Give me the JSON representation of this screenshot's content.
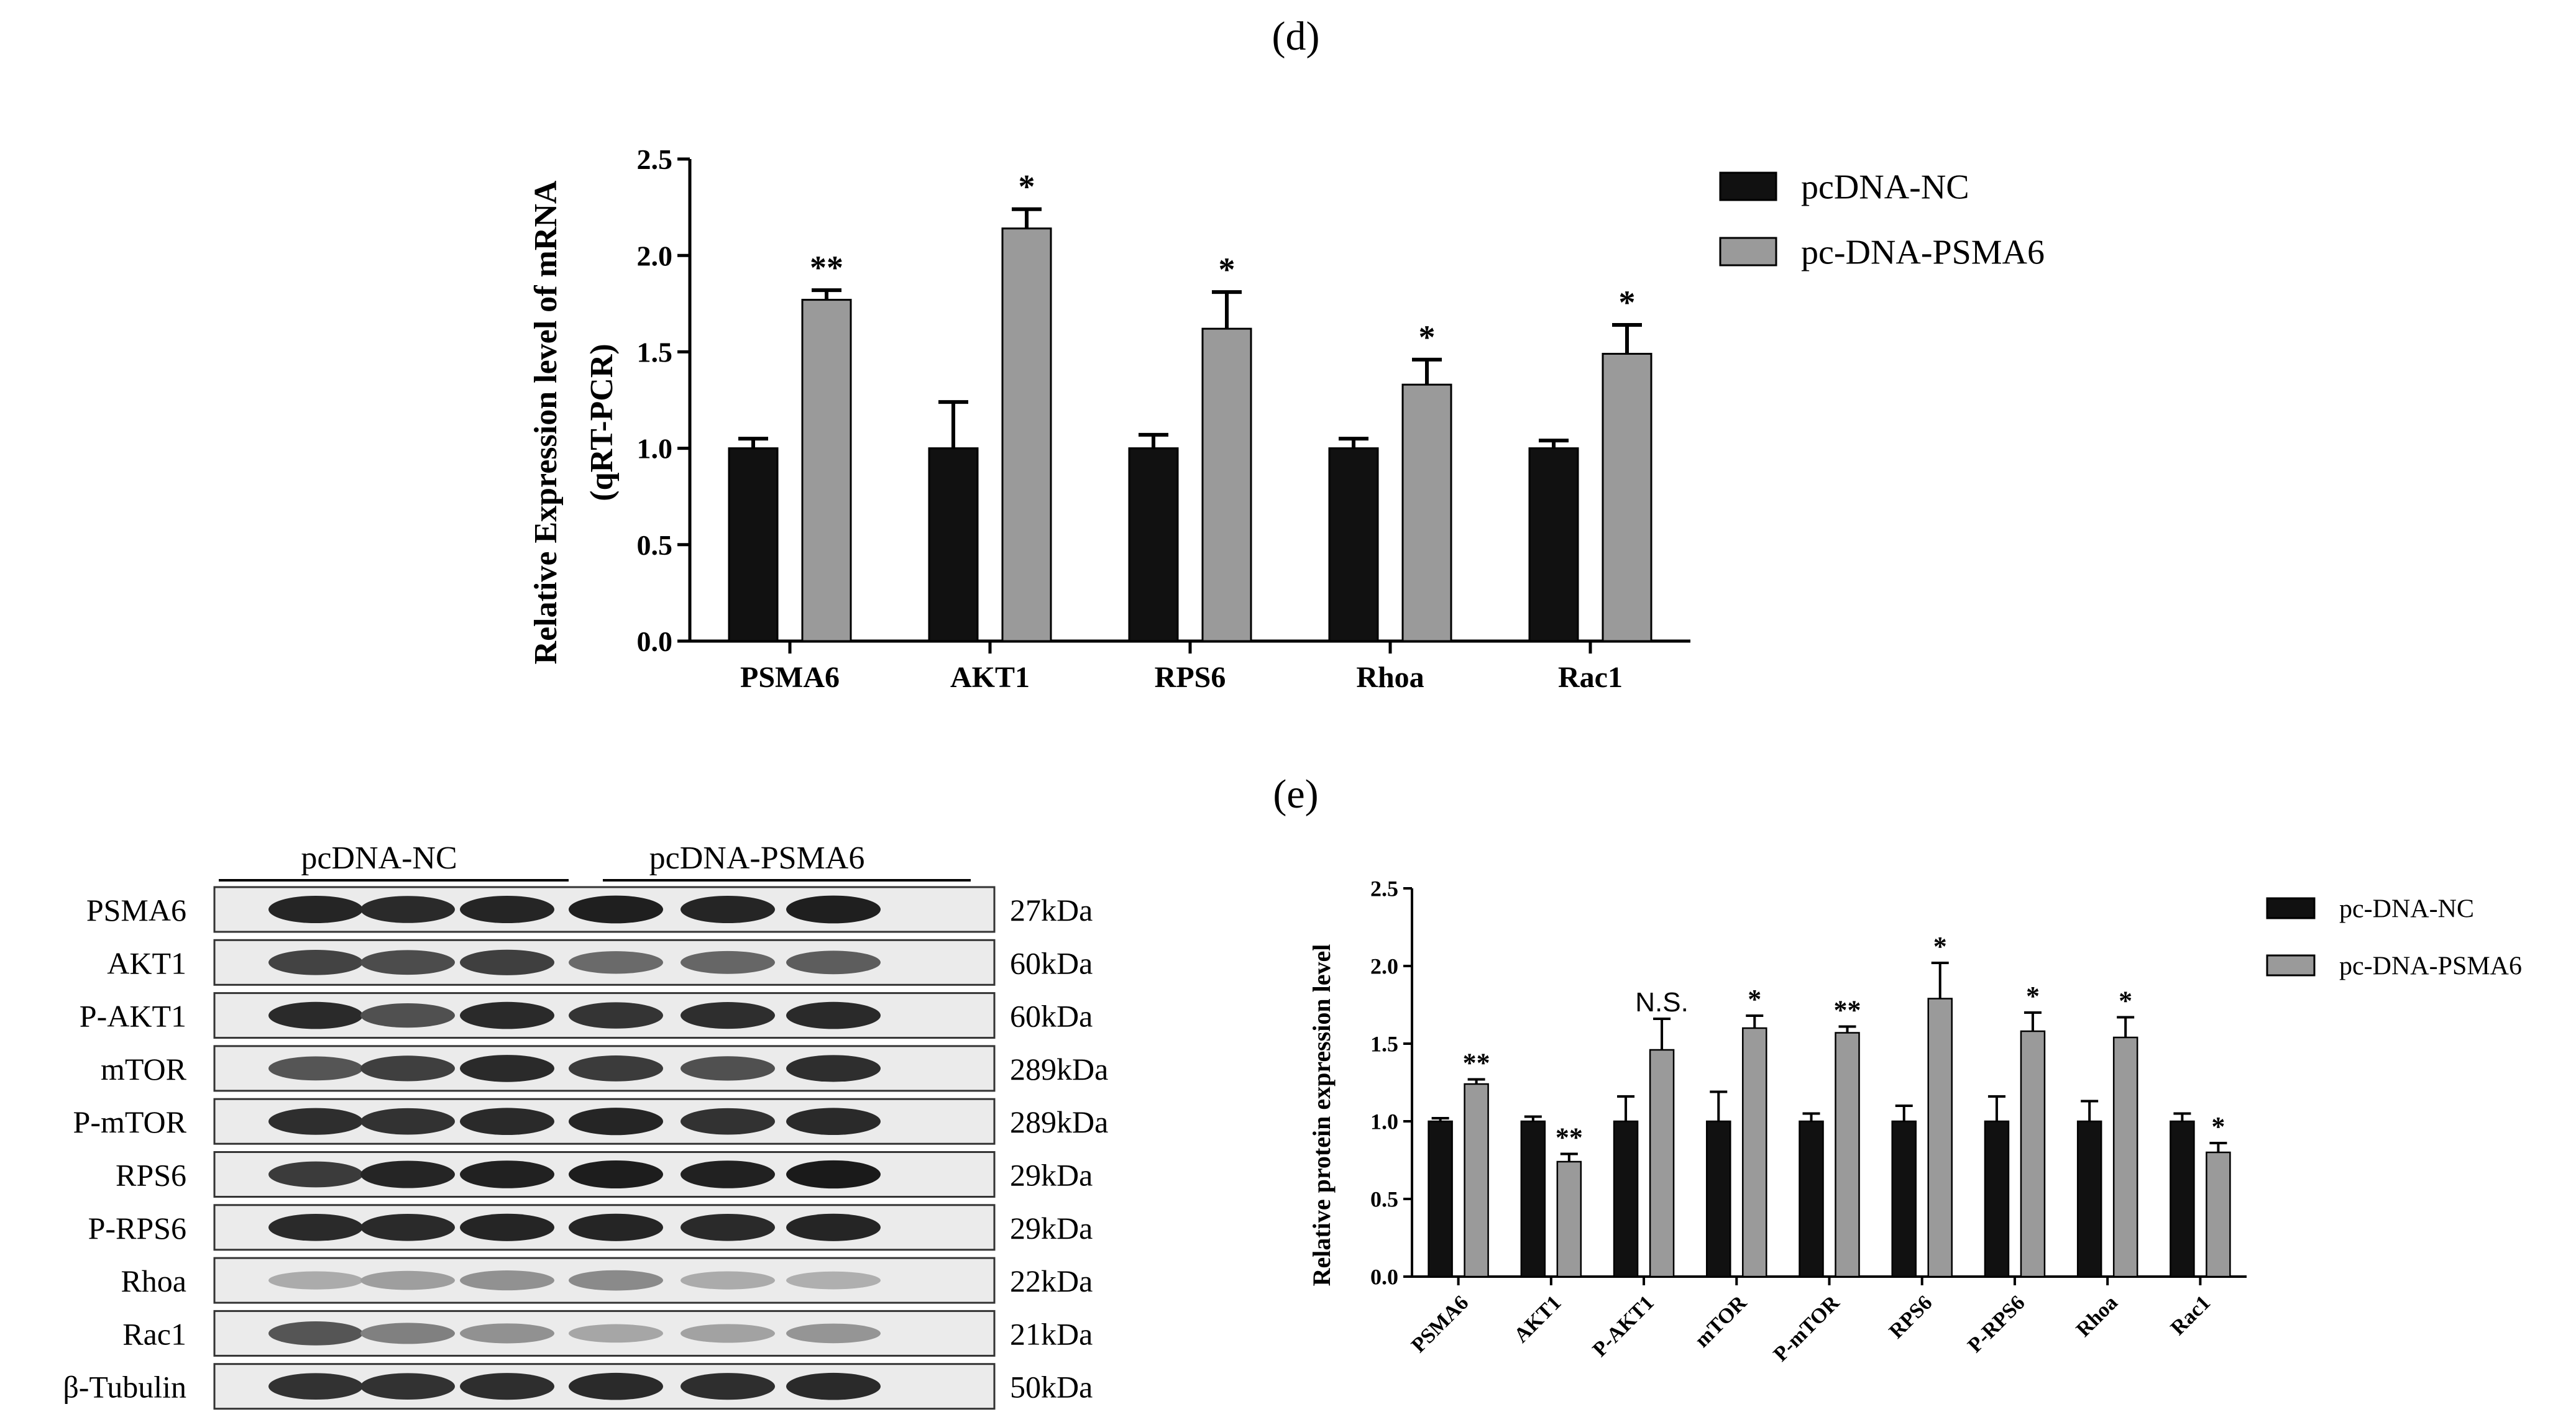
{
  "panels": {
    "d_label": "(d)",
    "e_label": "(e)"
  },
  "chart_data": [
    {
      "id": "d",
      "type": "bar",
      "ylabel_line1": "Relative Expression level of mRNA",
      "ylabel_line2": "(qRT-PCR)",
      "xlabel": "",
      "ylim": [
        0,
        2.5
      ],
      "yticks": [
        "0.0",
        "0.5",
        "1.0",
        "1.5",
        "2.0",
        "2.5"
      ],
      "categories": [
        "PSMA6",
        "AKT1",
        "RPS6",
        "Rhoa",
        "Rac1"
      ],
      "series": [
        {
          "name": "pcDNA-NC",
          "color": "#111111",
          "values": [
            1.0,
            1.0,
            1.0,
            1.0,
            1.0
          ],
          "errors": [
            0.05,
            0.24,
            0.07,
            0.05,
            0.04
          ]
        },
        {
          "name": "pc-DNA-PSMA6",
          "color": "#9a9a9a",
          "values": [
            1.77,
            2.14,
            1.62,
            1.33,
            1.49
          ],
          "errors": [
            0.05,
            0.1,
            0.19,
            0.13,
            0.15
          ]
        }
      ],
      "significance": [
        "**",
        "*",
        "*",
        "*",
        "*"
      ],
      "legend_position": "top-right",
      "grid": false
    },
    {
      "id": "e",
      "type": "bar",
      "ylabel": "Relative protein expression level",
      "xlabel": "",
      "ylim": [
        0,
        2.5
      ],
      "yticks": [
        "0.0",
        "0.5",
        "1.0",
        "1.5",
        "2.0",
        "2.5"
      ],
      "categories": [
        "PSMA6",
        "AKT1",
        "P-AKT1",
        "mTOR",
        "P-mTOR",
        "RPS6",
        "P-RPS6",
        "Rhoa",
        "Rac1"
      ],
      "series": [
        {
          "name": "pc-DNA-NC",
          "color": "#111111",
          "values": [
            1.0,
            1.0,
            1.0,
            1.0,
            1.0,
            1.0,
            1.0,
            1.0,
            1.0
          ],
          "errors": [
            0.02,
            0.03,
            0.16,
            0.19,
            0.05,
            0.1,
            0.16,
            0.13,
            0.05
          ]
        },
        {
          "name": "pc-DNA-PSMA6",
          "color": "#9a9a9a",
          "values": [
            1.24,
            0.74,
            1.46,
            1.6,
            1.57,
            1.79,
            1.58,
            1.54,
            0.8
          ]
        }
      ],
      "errors_treat": [
        0.03,
        0.05,
        0.2,
        0.08,
        0.04,
        0.23,
        0.12,
        0.13,
        0.06
      ],
      "significance": [
        "**",
        "**",
        "N.S.",
        "*",
        "**",
        "*",
        "*",
        "*",
        "*"
      ],
      "legend_position": "top-right",
      "grid": false
    }
  ],
  "blot": {
    "groups": [
      "pcDNA-NC",
      "pcDNA-PSMA6"
    ],
    "rows": [
      {
        "protein": "PSMA6",
        "size": "27kDa",
        "intensity": [
          0.92,
          0.9,
          0.92,
          0.95,
          0.92,
          0.95
        ]
      },
      {
        "protein": "AKT1",
        "size": "60kDa",
        "intensity": [
          0.78,
          0.74,
          0.8,
          0.6,
          0.62,
          0.66
        ]
      },
      {
        "protein": "P-AKT1",
        "size": "60kDa",
        "intensity": [
          0.9,
          0.72,
          0.9,
          0.85,
          0.88,
          0.9
        ]
      },
      {
        "protein": "mTOR",
        "size": "289kDa",
        "intensity": [
          0.7,
          0.8,
          0.9,
          0.82,
          0.72,
          0.88
        ]
      },
      {
        "protein": "P-mTOR",
        "size": "289kDa",
        "intensity": [
          0.88,
          0.86,
          0.9,
          0.92,
          0.86,
          0.9
        ]
      },
      {
        "protein": "RPS6",
        "size": "29kDa",
        "intensity": [
          0.82,
          0.92,
          0.94,
          0.96,
          0.94,
          0.97
        ]
      },
      {
        "protein": "P-RPS6",
        "size": "29kDa",
        "intensity": [
          0.9,
          0.9,
          0.92,
          0.92,
          0.9,
          0.92
        ]
      },
      {
        "protein": "Rhoa",
        "size": "22kDa",
        "intensity": [
          0.3,
          0.36,
          0.42,
          0.45,
          0.3,
          0.28
        ]
      },
      {
        "protein": "Rac1",
        "size": "21kDa",
        "intensity": [
          0.7,
          0.5,
          0.42,
          0.32,
          0.34,
          0.4
        ]
      },
      {
        "protein": "β-Tubulin",
        "size": "50kDa",
        "intensity": [
          0.86,
          0.86,
          0.88,
          0.9,
          0.88,
          0.9
        ]
      }
    ]
  }
}
